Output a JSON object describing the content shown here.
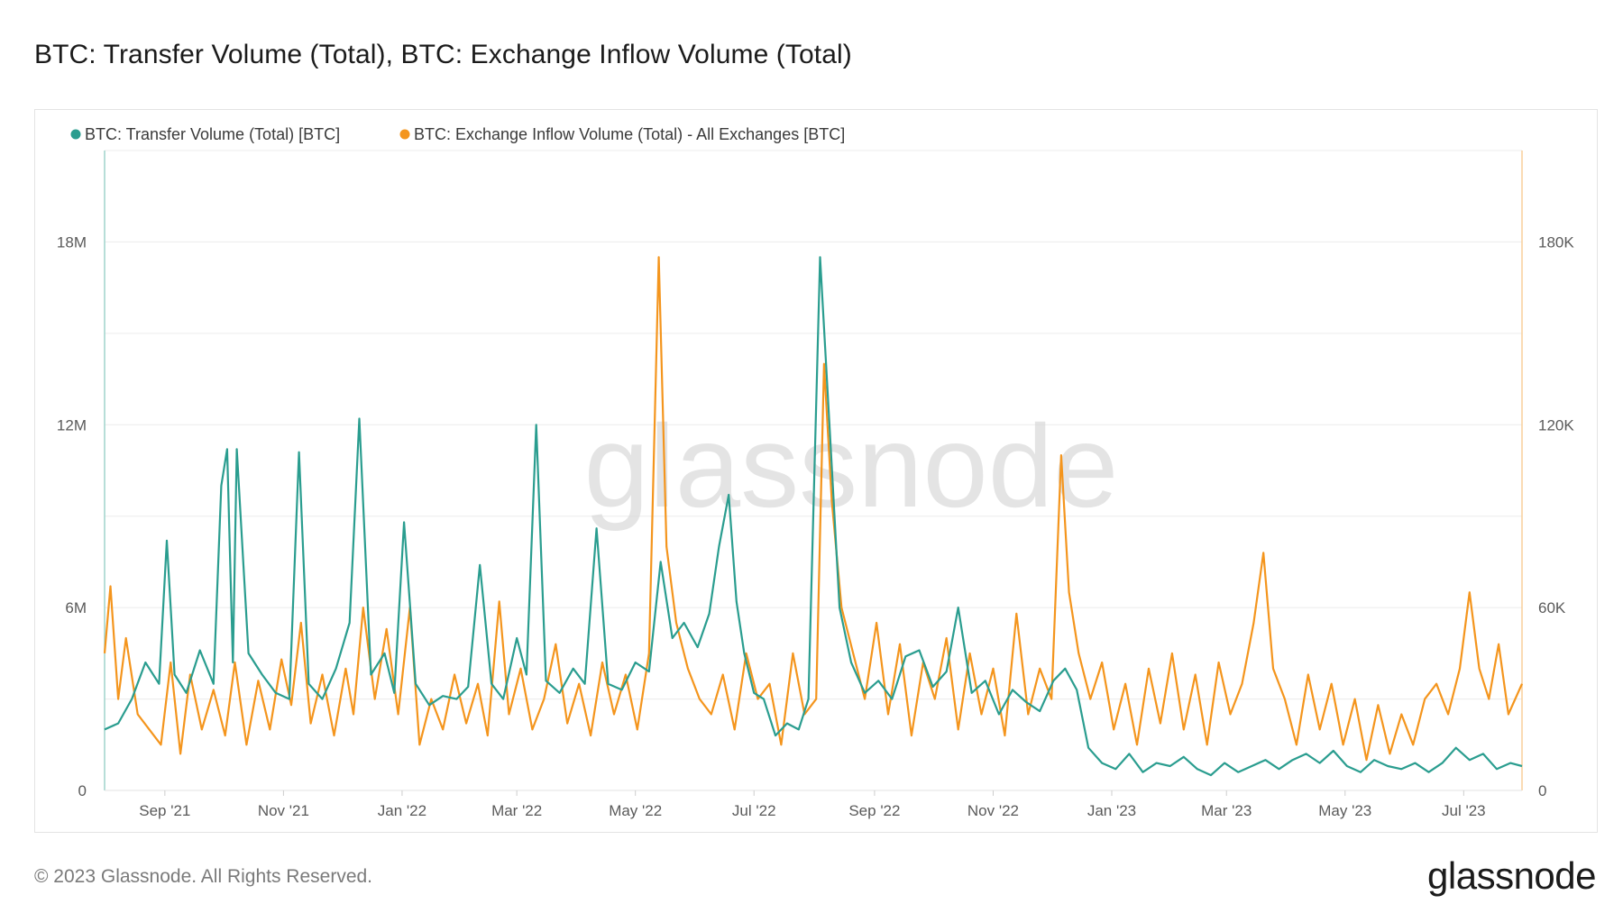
{
  "title": "BTC: Transfer Volume (Total), BTC: Exchange Inflow Volume (Total)",
  "footer": {
    "copyright": "© 2023 Glassnode. All Rights Reserved.",
    "logo_text": "glassnode"
  },
  "watermark": "glassnode",
  "colors": {
    "transfer": "#2a9d8f",
    "inflow": "#f4951d",
    "grid": "#ececec",
    "left_axis_line": "#9fd3cc",
    "right_axis_line": "#f8cf9a"
  },
  "chart_data": {
    "type": "line",
    "x_ticks": [
      "Sep '21",
      "Nov '21",
      "Jan '22",
      "Mar '22",
      "May '22",
      "Jul '22",
      "Sep '22",
      "Nov '22",
      "Jan '23",
      "Mar '23",
      "May '23",
      "Jul '23"
    ],
    "x_range": [
      "2021-08-01",
      "2023-07-31"
    ],
    "y_left": {
      "ticks": [
        "0",
        "6M",
        "12M",
        "18M"
      ],
      "range": [
        0,
        21000000
      ]
    },
    "y_right": {
      "ticks": [
        "0",
        "60K",
        "120K",
        "180K"
      ],
      "range": [
        0,
        210000
      ]
    },
    "legend": {
      "position": "top-left"
    },
    "grid": true,
    "series": [
      {
        "name": "BTC: Transfer Volume (Total) [BTC]",
        "axis": "left",
        "points": [
          [
            "2021-08-01",
            2000000
          ],
          [
            "2021-08-08",
            2200000
          ],
          [
            "2021-08-15",
            3000000
          ],
          [
            "2021-08-22",
            4200000
          ],
          [
            "2021-08-29",
            3500000
          ],
          [
            "2021-09-02",
            8200000
          ],
          [
            "2021-09-06",
            3800000
          ],
          [
            "2021-09-12",
            3200000
          ],
          [
            "2021-09-19",
            4600000
          ],
          [
            "2021-09-26",
            3500000
          ],
          [
            "2021-09-30",
            10000000
          ],
          [
            "2021-10-03",
            11200000
          ],
          [
            "2021-10-06",
            4200000
          ],
          [
            "2021-10-08",
            11200000
          ],
          [
            "2021-10-14",
            4500000
          ],
          [
            "2021-10-21",
            3800000
          ],
          [
            "2021-10-28",
            3200000
          ],
          [
            "2021-11-04",
            3000000
          ],
          [
            "2021-11-09",
            11100000
          ],
          [
            "2021-11-14",
            3500000
          ],
          [
            "2021-11-21",
            3000000
          ],
          [
            "2021-11-28",
            4000000
          ],
          [
            "2021-12-05",
            5500000
          ],
          [
            "2021-12-10",
            12200000
          ],
          [
            "2021-12-16",
            3800000
          ],
          [
            "2021-12-23",
            4500000
          ],
          [
            "2021-12-28",
            3200000
          ],
          [
            "2022-01-02",
            8800000
          ],
          [
            "2022-01-08",
            3500000
          ],
          [
            "2022-01-15",
            2800000
          ],
          [
            "2022-01-22",
            3100000
          ],
          [
            "2022-01-29",
            3000000
          ],
          [
            "2022-02-04",
            3400000
          ],
          [
            "2022-02-10",
            7400000
          ],
          [
            "2022-02-16",
            3500000
          ],
          [
            "2022-02-22",
            3000000
          ],
          [
            "2022-03-01",
            5000000
          ],
          [
            "2022-03-06",
            3800000
          ],
          [
            "2022-03-11",
            12000000
          ],
          [
            "2022-03-16",
            3600000
          ],
          [
            "2022-03-23",
            3200000
          ],
          [
            "2022-03-30",
            4000000
          ],
          [
            "2022-04-05",
            3500000
          ],
          [
            "2022-04-11",
            8600000
          ],
          [
            "2022-04-17",
            3500000
          ],
          [
            "2022-04-24",
            3300000
          ],
          [
            "2022-05-01",
            4200000
          ],
          [
            "2022-05-08",
            3900000
          ],
          [
            "2022-05-14",
            7500000
          ],
          [
            "2022-05-20",
            5000000
          ],
          [
            "2022-05-26",
            5500000
          ],
          [
            "2022-06-02",
            4700000
          ],
          [
            "2022-06-08",
            5800000
          ],
          [
            "2022-06-13",
            8000000
          ],
          [
            "2022-06-18",
            9700000
          ],
          [
            "2022-06-22",
            6200000
          ],
          [
            "2022-06-26",
            4500000
          ],
          [
            "2022-07-01",
            3200000
          ],
          [
            "2022-07-06",
            3000000
          ],
          [
            "2022-07-12",
            1800000
          ],
          [
            "2022-07-18",
            2200000
          ],
          [
            "2022-07-24",
            2000000
          ],
          [
            "2022-07-29",
            3000000
          ],
          [
            "2022-08-04",
            17500000
          ],
          [
            "2022-08-09",
            11800000
          ],
          [
            "2022-08-14",
            6000000
          ],
          [
            "2022-08-20",
            4200000
          ],
          [
            "2022-08-27",
            3200000
          ],
          [
            "2022-09-03",
            3600000
          ],
          [
            "2022-09-10",
            3000000
          ],
          [
            "2022-09-17",
            4400000
          ],
          [
            "2022-09-24",
            4600000
          ],
          [
            "2022-10-01",
            3400000
          ],
          [
            "2022-10-08",
            3900000
          ],
          [
            "2022-10-14",
            6000000
          ],
          [
            "2022-10-21",
            3200000
          ],
          [
            "2022-10-28",
            3600000
          ],
          [
            "2022-11-04",
            2500000
          ],
          [
            "2022-11-11",
            3300000
          ],
          [
            "2022-11-18",
            2900000
          ],
          [
            "2022-11-25",
            2600000
          ],
          [
            "2022-12-02",
            3600000
          ],
          [
            "2022-12-08",
            4000000
          ],
          [
            "2022-12-14",
            3300000
          ],
          [
            "2022-12-20",
            1400000
          ],
          [
            "2022-12-27",
            900000
          ],
          [
            "2023-01-03",
            700000
          ],
          [
            "2023-01-10",
            1200000
          ],
          [
            "2023-01-17",
            600000
          ],
          [
            "2023-01-24",
            900000
          ],
          [
            "2023-01-31",
            800000
          ],
          [
            "2023-02-07",
            1100000
          ],
          [
            "2023-02-14",
            700000
          ],
          [
            "2023-02-21",
            500000
          ],
          [
            "2023-02-28",
            900000
          ],
          [
            "2023-03-07",
            600000
          ],
          [
            "2023-03-14",
            800000
          ],
          [
            "2023-03-21",
            1000000
          ],
          [
            "2023-03-28",
            700000
          ],
          [
            "2023-04-04",
            1000000
          ],
          [
            "2023-04-11",
            1200000
          ],
          [
            "2023-04-18",
            900000
          ],
          [
            "2023-04-25",
            1300000
          ],
          [
            "2023-05-02",
            800000
          ],
          [
            "2023-05-09",
            600000
          ],
          [
            "2023-05-16",
            1000000
          ],
          [
            "2023-05-23",
            800000
          ],
          [
            "2023-05-30",
            700000
          ],
          [
            "2023-06-06",
            900000
          ],
          [
            "2023-06-13",
            600000
          ],
          [
            "2023-06-20",
            900000
          ],
          [
            "2023-06-27",
            1400000
          ],
          [
            "2023-07-04",
            1000000
          ],
          [
            "2023-07-11",
            1200000
          ],
          [
            "2023-07-18",
            700000
          ],
          [
            "2023-07-25",
            900000
          ],
          [
            "2023-07-31",
            800000
          ]
        ]
      },
      {
        "name": "BTC: Exchange Inflow Volume (Total) - All Exchanges [BTC]",
        "axis": "right",
        "points": [
          [
            "2021-08-01",
            45000
          ],
          [
            "2021-08-04",
            67000
          ],
          [
            "2021-08-08",
            30000
          ],
          [
            "2021-08-12",
            50000
          ],
          [
            "2021-08-18",
            25000
          ],
          [
            "2021-08-24",
            20000
          ],
          [
            "2021-08-30",
            15000
          ],
          [
            "2021-09-04",
            42000
          ],
          [
            "2021-09-09",
            12000
          ],
          [
            "2021-09-14",
            38000
          ],
          [
            "2021-09-20",
            20000
          ],
          [
            "2021-09-26",
            33000
          ],
          [
            "2021-10-02",
            18000
          ],
          [
            "2021-10-07",
            42000
          ],
          [
            "2021-10-13",
            15000
          ],
          [
            "2021-10-19",
            36000
          ],
          [
            "2021-10-25",
            20000
          ],
          [
            "2021-10-31",
            43000
          ],
          [
            "2021-11-05",
            28000
          ],
          [
            "2021-11-10",
            55000
          ],
          [
            "2021-11-15",
            22000
          ],
          [
            "2021-11-21",
            38000
          ],
          [
            "2021-11-27",
            18000
          ],
          [
            "2021-12-03",
            40000
          ],
          [
            "2021-12-07",
            25000
          ],
          [
            "2021-12-12",
            60000
          ],
          [
            "2021-12-18",
            30000
          ],
          [
            "2021-12-24",
            53000
          ],
          [
            "2021-12-30",
            25000
          ],
          [
            "2022-01-05",
            60000
          ],
          [
            "2022-01-10",
            15000
          ],
          [
            "2022-01-16",
            30000
          ],
          [
            "2022-01-22",
            20000
          ],
          [
            "2022-01-28",
            38000
          ],
          [
            "2022-02-03",
            22000
          ],
          [
            "2022-02-09",
            35000
          ],
          [
            "2022-02-14",
            18000
          ],
          [
            "2022-02-20",
            62000
          ],
          [
            "2022-02-25",
            25000
          ],
          [
            "2022-03-03",
            40000
          ],
          [
            "2022-03-09",
            20000
          ],
          [
            "2022-03-15",
            30000
          ],
          [
            "2022-03-21",
            48000
          ],
          [
            "2022-03-27",
            22000
          ],
          [
            "2022-04-02",
            35000
          ],
          [
            "2022-04-08",
            18000
          ],
          [
            "2022-04-14",
            42000
          ],
          [
            "2022-04-20",
            25000
          ],
          [
            "2022-04-26",
            38000
          ],
          [
            "2022-05-02",
            20000
          ],
          [
            "2022-05-08",
            45000
          ],
          [
            "2022-05-13",
            175000
          ],
          [
            "2022-05-17",
            80000
          ],
          [
            "2022-05-22",
            55000
          ],
          [
            "2022-05-28",
            40000
          ],
          [
            "2022-06-03",
            30000
          ],
          [
            "2022-06-09",
            25000
          ],
          [
            "2022-06-15",
            38000
          ],
          [
            "2022-06-21",
            20000
          ],
          [
            "2022-06-27",
            45000
          ],
          [
            "2022-07-03",
            30000
          ],
          [
            "2022-07-09",
            35000
          ],
          [
            "2022-07-15",
            15000
          ],
          [
            "2022-07-21",
            45000
          ],
          [
            "2022-07-27",
            25000
          ],
          [
            "2022-08-02",
            30000
          ],
          [
            "2022-08-06",
            140000
          ],
          [
            "2022-08-10",
            95000
          ],
          [
            "2022-08-15",
            60000
          ],
          [
            "2022-08-21",
            45000
          ],
          [
            "2022-08-27",
            30000
          ],
          [
            "2022-09-02",
            55000
          ],
          [
            "2022-09-08",
            25000
          ],
          [
            "2022-09-14",
            48000
          ],
          [
            "2022-09-20",
            18000
          ],
          [
            "2022-09-26",
            42000
          ],
          [
            "2022-10-02",
            30000
          ],
          [
            "2022-10-08",
            50000
          ],
          [
            "2022-10-14",
            20000
          ],
          [
            "2022-10-20",
            45000
          ],
          [
            "2022-10-26",
            25000
          ],
          [
            "2022-11-01",
            40000
          ],
          [
            "2022-11-07",
            18000
          ],
          [
            "2022-11-13",
            58000
          ],
          [
            "2022-11-19",
            25000
          ],
          [
            "2022-11-25",
            40000
          ],
          [
            "2022-12-01",
            30000
          ],
          [
            "2022-12-06",
            110000
          ],
          [
            "2022-12-10",
            65000
          ],
          [
            "2022-12-15",
            45000
          ],
          [
            "2022-12-21",
            30000
          ],
          [
            "2022-12-27",
            42000
          ],
          [
            "2023-01-02",
            20000
          ],
          [
            "2023-01-08",
            35000
          ],
          [
            "2023-01-14",
            15000
          ],
          [
            "2023-01-20",
            40000
          ],
          [
            "2023-01-26",
            22000
          ],
          [
            "2023-02-01",
            45000
          ],
          [
            "2023-02-07",
            20000
          ],
          [
            "2023-02-13",
            38000
          ],
          [
            "2023-02-19",
            15000
          ],
          [
            "2023-02-25",
            42000
          ],
          [
            "2023-03-03",
            25000
          ],
          [
            "2023-03-09",
            35000
          ],
          [
            "2023-03-15",
            55000
          ],
          [
            "2023-03-20",
            78000
          ],
          [
            "2023-03-25",
            40000
          ],
          [
            "2023-03-31",
            30000
          ],
          [
            "2023-04-06",
            15000
          ],
          [
            "2023-04-12",
            38000
          ],
          [
            "2023-04-18",
            20000
          ],
          [
            "2023-04-24",
            35000
          ],
          [
            "2023-04-30",
            15000
          ],
          [
            "2023-05-06",
            30000
          ],
          [
            "2023-05-12",
            10000
          ],
          [
            "2023-05-18",
            28000
          ],
          [
            "2023-05-24",
            12000
          ],
          [
            "2023-05-30",
            25000
          ],
          [
            "2023-06-05",
            15000
          ],
          [
            "2023-06-11",
            30000
          ],
          [
            "2023-06-17",
            35000
          ],
          [
            "2023-06-23",
            25000
          ],
          [
            "2023-06-29",
            40000
          ],
          [
            "2023-07-04",
            65000
          ],
          [
            "2023-07-09",
            40000
          ],
          [
            "2023-07-14",
            30000
          ],
          [
            "2023-07-19",
            48000
          ],
          [
            "2023-07-24",
            25000
          ],
          [
            "2023-07-31",
            35000
          ]
        ]
      }
    ]
  }
}
